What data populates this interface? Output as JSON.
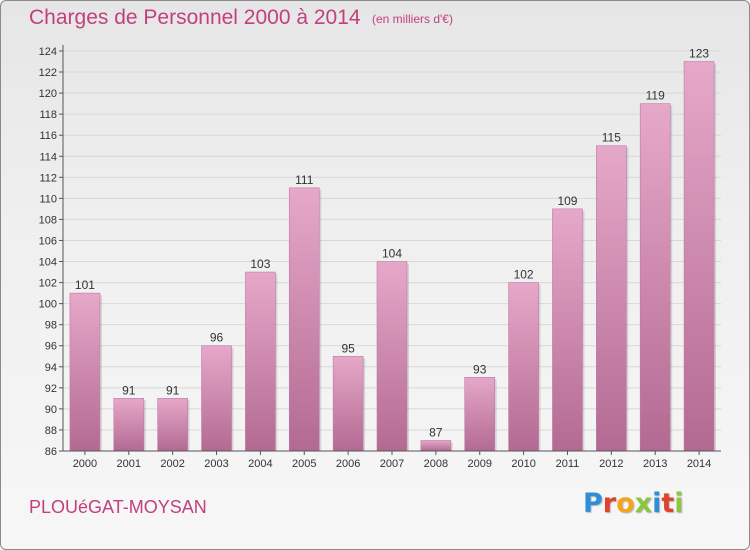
{
  "header": {
    "title": "Charges de Personnel 2000 à 2014",
    "unit": "(en milliers d'€)"
  },
  "footer": {
    "place": "PLOUéGAT-MOYSAN",
    "logo": "Proxiti",
    "logo_letters": [
      {
        "char": "P",
        "color": "#2e8fd6"
      },
      {
        "char": "r",
        "color": "#e0422a"
      },
      {
        "char": "o",
        "color": "#f2a51c"
      },
      {
        "char": "x",
        "color": "#8cc63f"
      },
      {
        "char": "i",
        "color": "#2e8fd6"
      },
      {
        "char": "t",
        "color": "#e0422a"
      },
      {
        "char": "i",
        "color": "#8cc63f"
      }
    ]
  },
  "chart_data": {
    "type": "bar",
    "categories": [
      "2000",
      "2001",
      "2002",
      "2003",
      "2004",
      "2005",
      "2006",
      "2007",
      "2008",
      "2009",
      "2010",
      "2011",
      "2012",
      "2013",
      "2014"
    ],
    "values": [
      101,
      91,
      91,
      96,
      103,
      111,
      95,
      104,
      87,
      93,
      102,
      109,
      115,
      119,
      123
    ],
    "title": "Charges de Personnel 2000 à 2014",
    "xlabel": "",
    "ylabel": "",
    "ylim": [
      86,
      124
    ],
    "yticks": [
      86,
      88,
      90,
      92,
      94,
      96,
      98,
      100,
      102,
      104,
      106,
      108,
      110,
      112,
      114,
      116,
      118,
      120,
      122,
      124
    ],
    "grid": true,
    "data_labels": true,
    "colors": {
      "bar_light": "#e6a8c9",
      "bar_dark": "#b36a92",
      "text_accent": "#c2407e",
      "grid": "#d8d8d8",
      "axis": "#555555"
    }
  }
}
